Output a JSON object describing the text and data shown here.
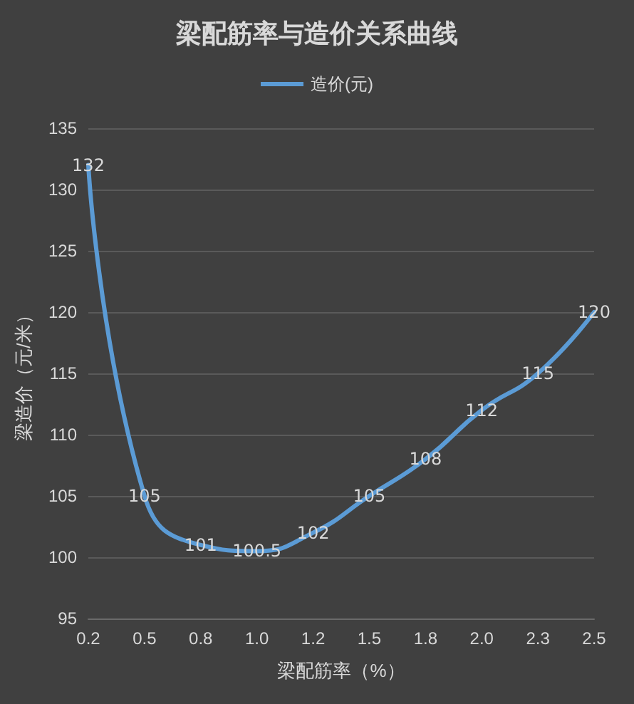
{
  "chart_data": {
    "type": "line",
    "title": "梁配筋率与造价关系曲线",
    "xlabel": "梁配筋率（%）",
    "ylabel": "梁造价（元/米）",
    "categories": [
      "0.2",
      "0.5",
      "0.8",
      "1.0",
      "1.2",
      "1.5",
      "1.8",
      "2.0",
      "2.3",
      "2.5"
    ],
    "series": [
      {
        "name": "造价(元)",
        "color": "#5b9bd5",
        "values": [
          132,
          105,
          101,
          100.5,
          102,
          105,
          108,
          112,
          115,
          120
        ]
      }
    ],
    "ylim": [
      95,
      135
    ],
    "yticks": [
      95,
      100,
      105,
      110,
      115,
      120,
      125,
      130,
      135
    ],
    "grid": "y",
    "legend": "top",
    "data_labels": true,
    "marker": "none",
    "line_style": "solid"
  }
}
